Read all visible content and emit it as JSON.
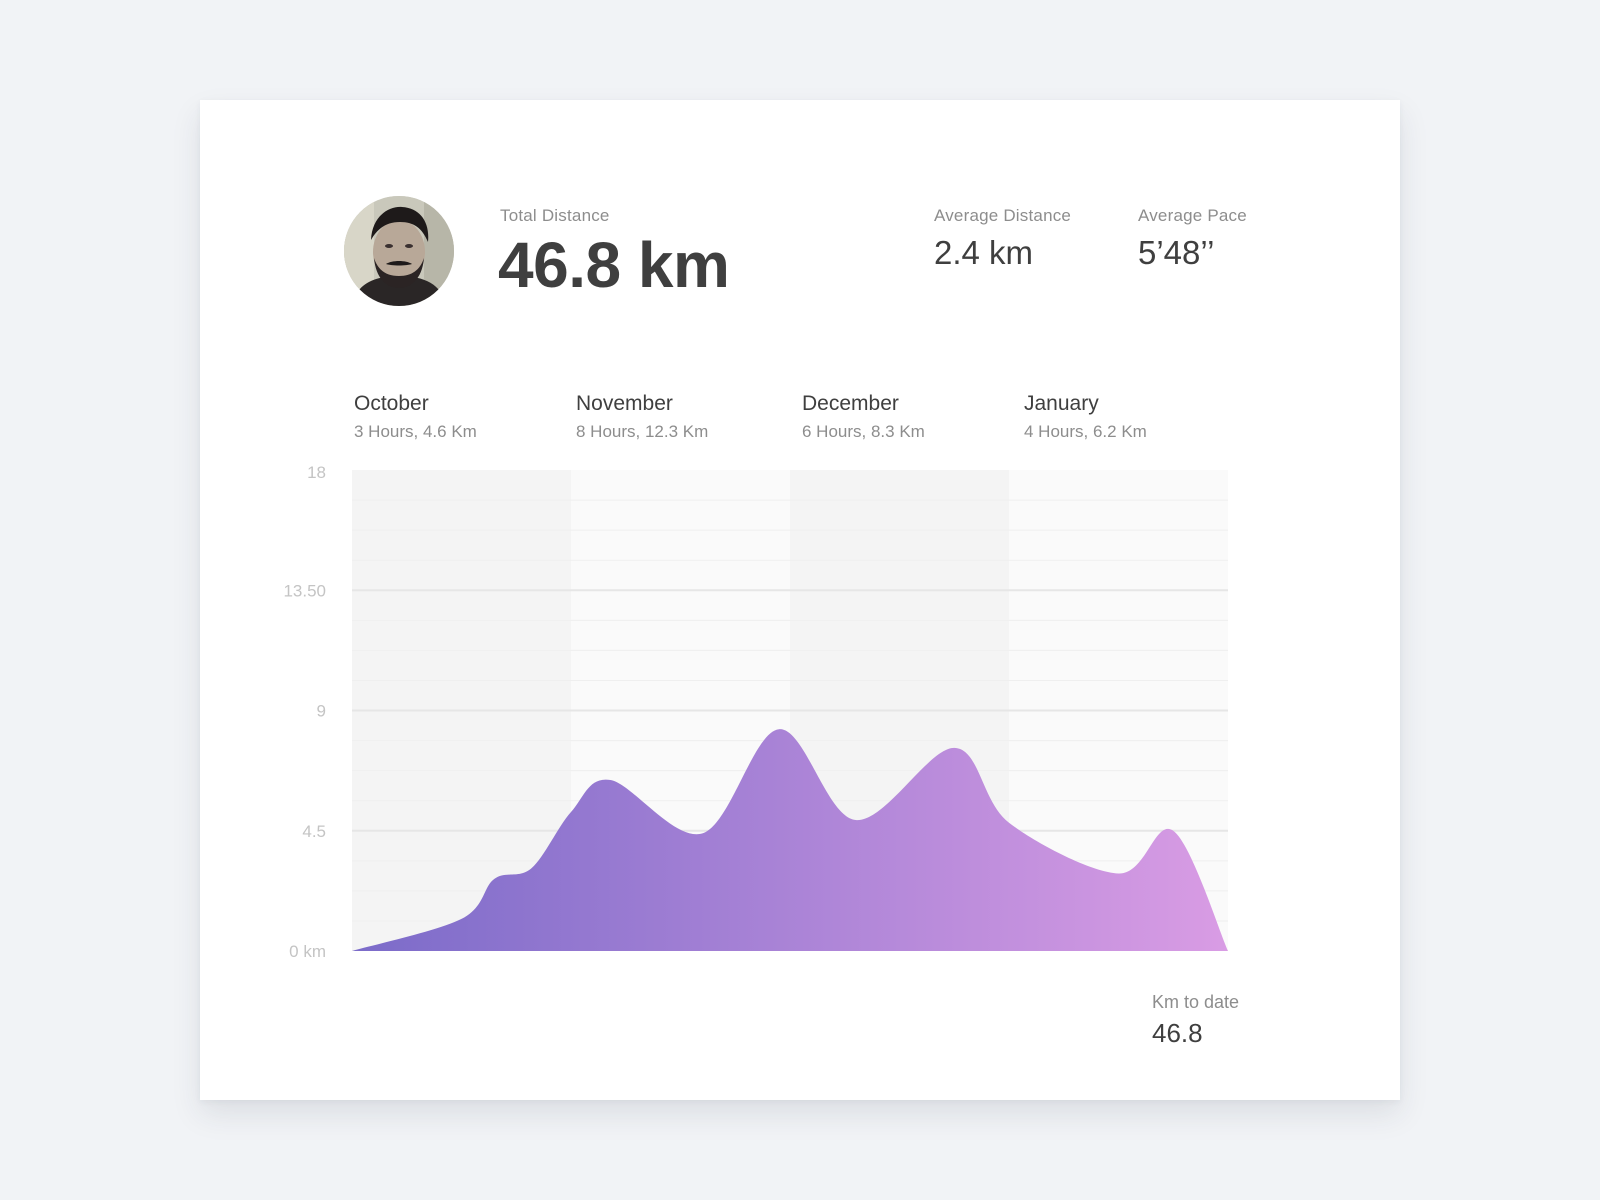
{
  "profile": {
    "avatar_alt": "avatar"
  },
  "stats": {
    "total_distance": {
      "label": "Total Distance",
      "value": "46.8 km"
    },
    "average_distance": {
      "label": "Average Distance",
      "value": "2.4 km"
    },
    "average_pace": {
      "label": "Average Pace",
      "value": "5’48’’"
    }
  },
  "months": [
    {
      "name": "October",
      "summary": "3 Hours, 4.6 Km"
    },
    {
      "name": "November",
      "summary": "8 Hours, 12.3 Km"
    },
    {
      "name": "December",
      "summary": "6 Hours, 8.3 Km"
    },
    {
      "name": "January",
      "summary": "4 Hours, 6.2 Km"
    }
  ],
  "footer": {
    "label": "Km to date",
    "value": "46.8"
  },
  "chart_data": {
    "type": "area",
    "title": "",
    "xlabel": "",
    "ylabel": "",
    "ylim": [
      0,
      18
    ],
    "y_ticks": [
      {
        "value": 0,
        "label": "0 km"
      },
      {
        "value": 4.5,
        "label": "4.5"
      },
      {
        "value": 9,
        "label": "9"
      },
      {
        "value": 13.5,
        "label": "13.50"
      },
      {
        "value": 18,
        "label": "18"
      }
    ],
    "x_range": [
      0,
      4
    ],
    "x_units": "months elapsed (0 = start of October, 4 = end of January)",
    "points": [
      [
        0,
        0
      ],
      [
        0.5,
        1.2
      ],
      [
        0.65,
        2.7
      ],
      [
        0.82,
        3.1
      ],
      [
        1.0,
        5.2
      ],
      [
        1.18,
        6.4
      ],
      [
        1.6,
        4.4
      ],
      [
        1.95,
        8.3
      ],
      [
        2.3,
        4.9
      ],
      [
        2.75,
        7.6
      ],
      [
        3.0,
        4.8
      ],
      [
        3.5,
        2.9
      ],
      [
        3.75,
        4.5
      ],
      [
        4.0,
        0
      ]
    ],
    "grid": true,
    "colors": {
      "gradient_start": "#7b6bc9",
      "gradient_end": "#d99ce4",
      "band_dark": "#f4f4f4",
      "band_light": "#fafafa",
      "grid_major": "#e6e6e6",
      "grid_minor": "#efefef",
      "tick_label": "#c4c4c4"
    }
  }
}
